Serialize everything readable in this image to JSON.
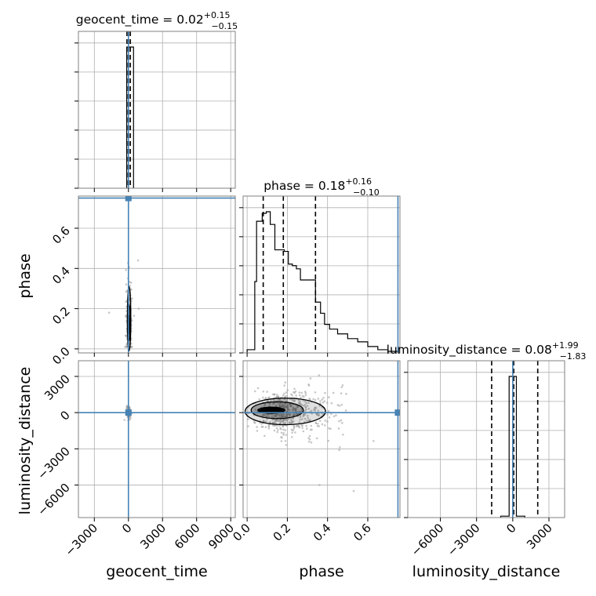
{
  "chart_data": {
    "type": "corner",
    "parameters": [
      {
        "name": "geocent_time",
        "median": "0.02",
        "plus": "+0.15",
        "minus": "−0.15",
        "title_prefix": "geocent_time = "
      },
      {
        "name": "phase",
        "median": "0.18",
        "plus": "+0.16",
        "minus": "−0.10",
        "title_prefix": "phase = "
      },
      {
        "name": "luminosity_distance",
        "median": "0.08",
        "plus": "+1.99",
        "minus": "−1.83",
        "title_prefix": "luminosity_distance = "
      }
    ],
    "axes": {
      "geocent_time": {
        "range": [
          -4400,
          9400
        ],
        "ticks": [
          -3000,
          0,
          3000,
          6000,
          9000
        ],
        "tick_labels": [
          "−3000",
          "0",
          "3000",
          "6000",
          "9000"
        ]
      },
      "phase": {
        "range": [
          -0.02,
          0.76
        ],
        "ticks": [
          0.0,
          0.2,
          0.4,
          0.6
        ],
        "tick_labels": [
          "0.0",
          "0.2",
          "0.4",
          "0.6"
        ]
      },
      "luminosity_distance": {
        "range": [
          -8700,
          4300
        ],
        "ticks": [
          -6000,
          -3000,
          0,
          3000
        ],
        "tick_labels": [
          "−6000",
          "−3000",
          "0",
          "3000"
        ]
      }
    },
    "truths": {
      "geocent_time": 0,
      "phase": 0.75,
      "luminosity_distance": 0
    },
    "truth_color": "#4682b4",
    "histograms": {
      "geocent_time": {
        "edges": [
          -150,
          450
        ],
        "counts": [
          1.0
        ],
        "quantiles": [
          -130,
          20,
          170
        ]
      },
      "phase": {
        "edges": [
          0.0,
          0.038,
          0.047,
          0.075,
          0.095,
          0.115,
          0.138,
          0.185,
          0.205,
          0.225,
          0.245,
          0.265,
          0.34,
          0.365,
          0.385,
          0.41,
          0.45,
          0.5,
          0.55,
          0.6,
          0.65,
          0.7,
          0.75
        ],
        "counts": [
          0.02,
          0.45,
          0.83,
          0.88,
          0.89,
          0.81,
          0.65,
          0.64,
          0.56,
          0.55,
          0.53,
          0.46,
          0.32,
          0.25,
          0.18,
          0.15,
          0.12,
          0.09,
          0.07,
          0.04,
          0.02,
          0.01
        ],
        "quantiles": [
          0.08,
          0.18,
          0.34
        ]
      },
      "luminosity_distance": {
        "edges": [
          -1000,
          -300,
          300,
          1000
        ],
        "counts": [
          0.01,
          1.0,
          0.01
        ],
        "quantiles": [
          -1750,
          80,
          2070
        ]
      }
    },
    "grid": true,
    "histogram_color": "#000000",
    "density_color": "#000000"
  }
}
